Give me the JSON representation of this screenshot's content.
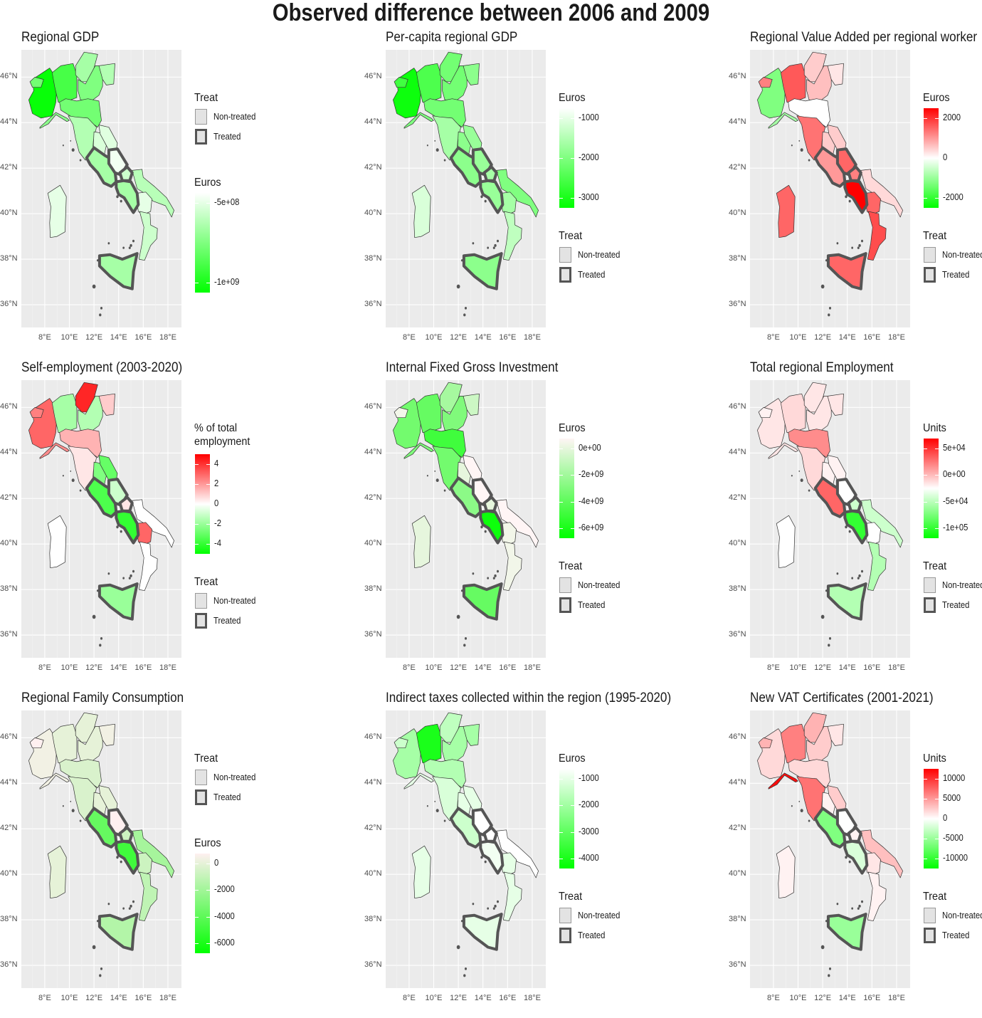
{
  "title": "Observed difference between 2006 and 2009",
  "axes": {
    "lat_ticks": [
      "46°N",
      "44°N",
      "42°N",
      "40°N",
      "38°N",
      "36°N"
    ],
    "lon_ticks": [
      "8°E",
      "10°E",
      "12°E",
      "14°E",
      "16°E",
      "18°E"
    ]
  },
  "treat_legend": {
    "title": "Treat",
    "non_treated": "Non-treated",
    "treated": "Treated"
  },
  "colors": {
    "panel_background": "#ebebeb",
    "low": "#00ff00",
    "mid": "#ffffff",
    "high": "#ff0000",
    "treated_outline": "#555555"
  },
  "regions": [
    "Piemonte",
    "Valle d'Aosta",
    "Lombardia",
    "Trentino-Alto Adige",
    "Veneto",
    "Friuli-Venezia Giulia",
    "Liguria",
    "Emilia-Romagna",
    "Toscana",
    "Umbria",
    "Marche",
    "Lazio",
    "Abruzzo",
    "Molise",
    "Campania",
    "Puglia",
    "Basilicata",
    "Calabria",
    "Sicilia",
    "Sardegna"
  ],
  "treated_regions": [
    "Lazio",
    "Abruzzo",
    "Molise",
    "Campania",
    "Sicilia"
  ],
  "panels": [
    {
      "title": "Regional GDP",
      "legend_first": "treat",
      "colorbar": {
        "title": "Euros",
        "labels": [
          "-5e+08",
          "-1e+09"
        ],
        "min_color": "#00ff00",
        "max_color": "#ffffff"
      },
      "region_values": [
        0.97,
        0.55,
        0.72,
        0.35,
        0.5,
        0.3,
        0.45,
        0.55,
        0.3,
        0.15,
        0.12,
        0.35,
        0.05,
        0.2,
        0.35,
        0.28,
        0.1,
        0.2,
        0.35,
        0.1
      ]
    },
    {
      "title": "Per-capita regional GDP",
      "legend_first": "colorbar",
      "colorbar": {
        "title": "Euros",
        "labels": [
          "-1000",
          "-2000",
          "-3000"
        ],
        "min_color": "#00ff00",
        "max_color": "#ffffff"
      },
      "region_values": [
        0.95,
        0.75,
        0.7,
        0.55,
        0.55,
        0.45,
        0.5,
        0.55,
        0.35,
        0.45,
        0.4,
        0.45,
        0.4,
        0.35,
        0.4,
        0.5,
        0.35,
        0.25,
        0.45,
        0.15
      ]
    },
    {
      "title": "Regional Value Added per regional worker",
      "legend_first": "colorbar",
      "colorbar": {
        "title": "Euros",
        "labels": [
          "2000",
          "0",
          "-2000"
        ],
        "diverging": true
      },
      "region_values": [
        -0.5,
        0.5,
        0.65,
        0.2,
        0.25,
        0.1,
        -0.35,
        0.0,
        0.55,
        0.2,
        0.2,
        0.4,
        0.6,
        0.5,
        1.0,
        0.15,
        0.6,
        0.7,
        0.6,
        0.6
      ]
    },
    {
      "title": "Self-employment (2003-2020)",
      "legend_first": "colorbar",
      "colorbar": {
        "title": "% of total employment",
        "labels": [
          "4",
          "2",
          "0",
          "-2",
          "-4"
        ],
        "diverging": true
      },
      "region_values": [
        0.6,
        0.5,
        -0.35,
        0.85,
        -0.3,
        0.2,
        0.45,
        0.3,
        0.1,
        -0.5,
        -0.6,
        -0.7,
        -0.2,
        0.1,
        -0.8,
        0.0,
        0.6,
        0.0,
        -0.4,
        0.0
      ]
    },
    {
      "title": "Internal Fixed Gross Investment",
      "legend_first": "colorbar",
      "colorbar": {
        "title": "Euros",
        "labels": [
          "0e+00",
          "-2e+09",
          "-4e+09",
          "-6e+09"
        ],
        "min_color": "#00ff00",
        "max_color": "#fff5f5"
      },
      "region_values": [
        0.55,
        0.05,
        0.6,
        0.35,
        0.5,
        0.2,
        0.5,
        0.75,
        0.55,
        0.1,
        0.0,
        0.45,
        -0.1,
        0.1,
        0.95,
        0.0,
        0.05,
        0.05,
        0.6,
        0.1
      ]
    },
    {
      "title": "Total regional Employment",
      "legend_first": "colorbar",
      "colorbar": {
        "title": "Units",
        "labels": [
          "5e+04",
          "0e+00",
          "-5e+04",
          "-1e+05"
        ],
        "diverging": true
      },
      "region_values": [
        0.1,
        0.05,
        0.15,
        0.1,
        0.1,
        0.1,
        0.1,
        0.45,
        0.15,
        0.05,
        0.05,
        0.6,
        0.0,
        -0.2,
        -0.8,
        -0.2,
        0.0,
        -0.3,
        -0.3,
        0.0
      ]
    },
    {
      "title": "Regional Family Consumption",
      "legend_first": "treat",
      "colorbar": {
        "title": "Euros",
        "labels": [
          "0",
          "-2000",
          "-4000",
          "-6000"
        ],
        "min_color": "#00ff00",
        "max_color": "#fff0f0"
      },
      "region_values": [
        0.05,
        0.0,
        0.1,
        0.1,
        0.1,
        0.05,
        0.05,
        0.15,
        0.15,
        0.1,
        0.1,
        0.6,
        0.0,
        0.2,
        0.75,
        0.35,
        0.2,
        0.25,
        0.3,
        0.1
      ]
    },
    {
      "title": "Indirect taxes collected within the region (1995-2020)",
      "legend_first": "colorbar",
      "colorbar": {
        "title": "Euros",
        "labels": [
          "-1000",
          "-2000",
          "-3000",
          "-4000"
        ],
        "min_color": "#00ff00",
        "max_color": "#ffffff"
      },
      "region_values": [
        0.35,
        0.2,
        0.9,
        0.25,
        0.35,
        0.35,
        0.1,
        0.3,
        0.15,
        0.1,
        0.1,
        0.2,
        0.0,
        0.0,
        0.05,
        0.0,
        0.1,
        0.1,
        0.1,
        0.1
      ]
    },
    {
      "title": "New VAT Certificates (2001-2021)",
      "legend_first": "colorbar",
      "colorbar": {
        "title": "Units",
        "labels": [
          "10000",
          "5000",
          "0",
          "-5000",
          "-10000"
        ],
        "diverging": true
      },
      "region_values": [
        0.15,
        0.3,
        0.5,
        0.3,
        0.2,
        0.1,
        0.95,
        0.15,
        0.55,
        0.05,
        0.2,
        -0.5,
        0.0,
        0.05,
        -0.15,
        0.25,
        0.1,
        0.05,
        -0.4,
        0.05
      ]
    }
  ]
}
